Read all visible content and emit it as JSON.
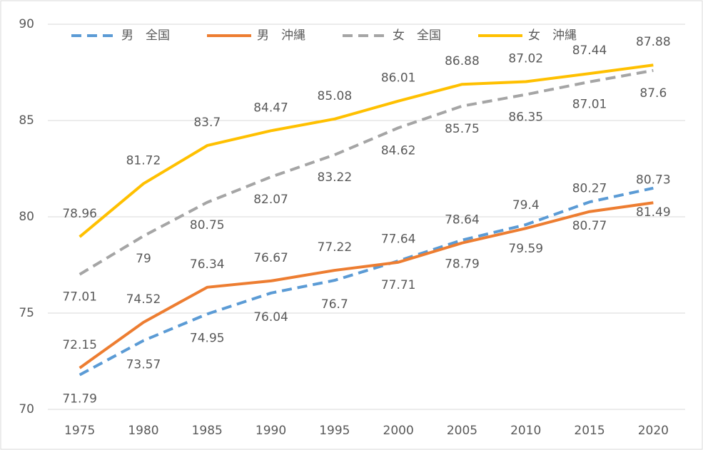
{
  "chart_data": {
    "type": "line",
    "categories": [
      "1975",
      "1980",
      "1985",
      "1990",
      "1995",
      "2000",
      "2005",
      "2010",
      "2015",
      "2020"
    ],
    "series": [
      {
        "name": "男　全国",
        "color": "#5b9bd5",
        "dashed": true,
        "values": [
          71.79,
          73.57,
          74.95,
          76.04,
          76.7,
          77.71,
          78.79,
          79.59,
          80.77,
          81.49
        ]
      },
      {
        "name": "男　沖縄",
        "color": "#ed7d31",
        "dashed": false,
        "values": [
          72.15,
          74.52,
          76.34,
          76.67,
          77.22,
          77.64,
          78.64,
          79.4,
          80.27,
          80.73
        ]
      },
      {
        "name": "女　全国",
        "color": "#a5a5a5",
        "dashed": true,
        "values": [
          77.01,
          79,
          80.75,
          82.07,
          83.22,
          84.62,
          85.75,
          86.35,
          87.01,
          87.6
        ]
      },
      {
        "name": "女　沖縄",
        "color": "#ffc000",
        "dashed": false,
        "values": [
          78.96,
          81.72,
          83.7,
          84.47,
          85.08,
          86.01,
          86.88,
          87.02,
          87.44,
          87.88
        ]
      }
    ],
    "ylim": [
      70,
      90
    ],
    "yticks": [
      70,
      75,
      80,
      85,
      90
    ],
    "grid": true,
    "legend": "top"
  }
}
